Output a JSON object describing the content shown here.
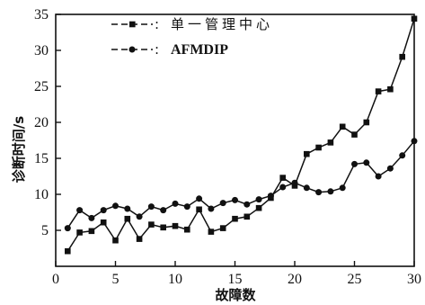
{
  "chart_data": {
    "type": "line",
    "xlabel": "故障数",
    "ylabel": "诊断时间/s",
    "xlim": [
      0,
      30
    ],
    "ylim": [
      0,
      35
    ],
    "xticks": [
      0,
      5,
      10,
      15,
      20,
      25,
      30
    ],
    "yticks": [
      5,
      10,
      15,
      20,
      25,
      30,
      35
    ],
    "grid": false,
    "legend_position": "top-left",
    "series": [
      {
        "name": "单一管理中心",
        "marker": "square",
        "x": [
          1,
          2,
          3,
          4,
          5,
          6,
          7,
          8,
          9,
          10,
          11,
          12,
          13,
          14,
          15,
          16,
          17,
          18,
          19,
          20,
          21,
          22,
          23,
          24,
          25,
          26,
          27,
          28,
          29,
          30
        ],
        "y": [
          2.1,
          4.7,
          4.9,
          6.1,
          3.6,
          6.6,
          3.8,
          5.8,
          5.4,
          5.6,
          5.1,
          7.9,
          4.8,
          5.3,
          6.6,
          6.9,
          8.1,
          9.5,
          12.3,
          11.2,
          15.6,
          16.5,
          17.2,
          19.4,
          18.3,
          20.0,
          24.3,
          24.6,
          29.1,
          34.4
        ]
      },
      {
        "name": "AFMDIP",
        "marker": "circle",
        "x": [
          1,
          2,
          3,
          4,
          5,
          6,
          7,
          8,
          9,
          10,
          11,
          12,
          13,
          14,
          15,
          16,
          17,
          18,
          19,
          20,
          21,
          22,
          23,
          24,
          25,
          26,
          27,
          28,
          29,
          30
        ],
        "y": [
          5.3,
          7.8,
          6.7,
          7.8,
          8.4,
          8.0,
          6.9,
          8.3,
          7.8,
          8.7,
          8.3,
          9.4,
          8.0,
          8.8,
          9.2,
          8.6,
          9.3,
          9.8,
          11.0,
          11.6,
          10.9,
          10.3,
          10.4,
          10.9,
          14.2,
          14.4,
          12.5,
          13.6,
          15.4,
          17.4
        ]
      }
    ]
  }
}
